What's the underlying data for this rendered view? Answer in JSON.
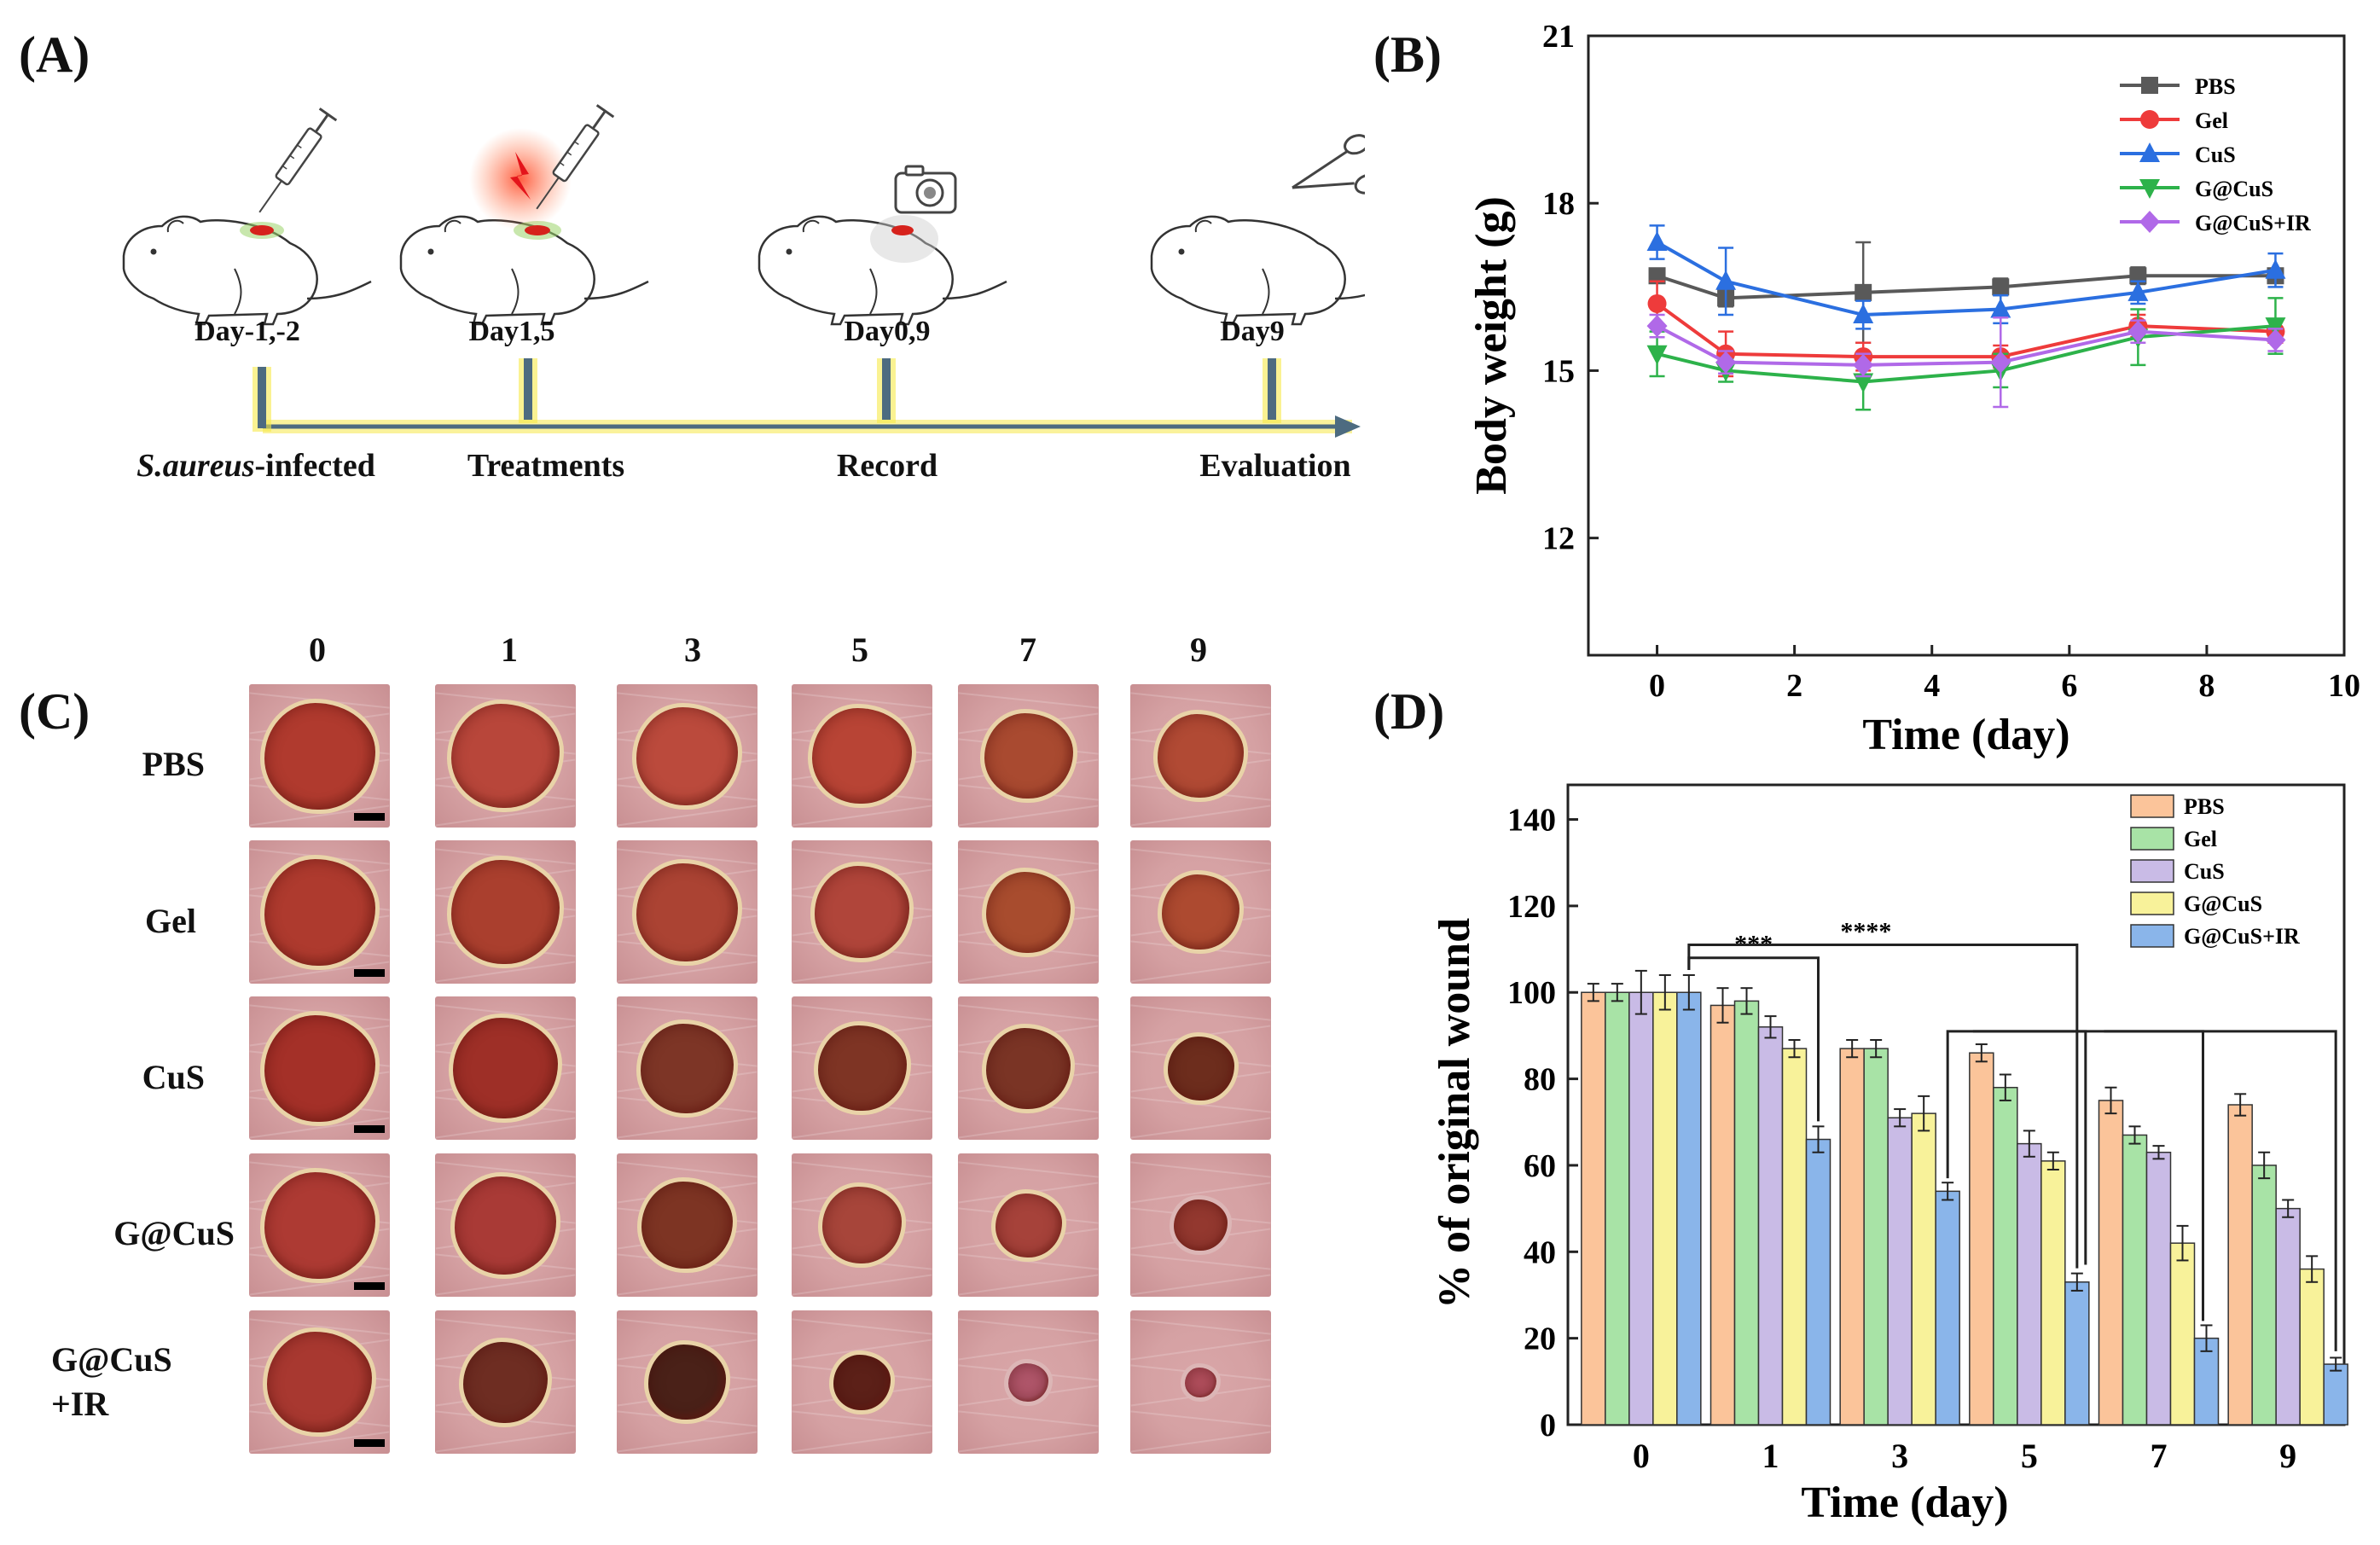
{
  "panels": {
    "a": "(A)",
    "b": "(B)",
    "c": "(C)",
    "d": "(D)"
  },
  "timeline": {
    "days": [
      "Day-1,-2",
      "Day1,5",
      "Day0,9",
      "Day9"
    ],
    "stages": [
      {
        "italic": "S.aureus",
        "rest": "-infected"
      },
      {
        "italic": "",
        "rest": "Treatments"
      },
      {
        "italic": "",
        "rest": "Record"
      },
      {
        "italic": "",
        "rest": "Evaluation"
      }
    ],
    "icons": [
      "syringe-icon",
      "laser-syringe-icon",
      "camera-icon",
      "scissors-icon"
    ],
    "accent": "#f6e94a"
  },
  "photo_grid": {
    "columns": [
      "0",
      "1",
      "3",
      "5",
      "7",
      "9"
    ],
    "rows": [
      "PBS",
      "Gel",
      "CuS",
      "G@CuS",
      "G@CuS\n+IR"
    ],
    "wound_size": [
      [
        1.0,
        0.98,
        0.92,
        0.9,
        0.8,
        0.78
      ],
      [
        1.0,
        0.97,
        0.92,
        0.86,
        0.76,
        0.7
      ],
      [
        1.0,
        0.95,
        0.84,
        0.8,
        0.76,
        0.6
      ],
      [
        1.0,
        0.92,
        0.82,
        0.72,
        0.6,
        0.48
      ],
      [
        0.95,
        0.76,
        0.7,
        0.52,
        0.36,
        0.28
      ]
    ],
    "wound_colors": [
      [
        "#b03a2e",
        "#b8463a",
        "#bb4a3c",
        "#b84435",
        "#a94a30",
        "#b14a34"
      ],
      [
        "#ae3a2e",
        "#aa3f2e",
        "#ab4333",
        "#b0453a",
        "#a84c2e",
        "#ad4a30"
      ],
      [
        "#a43028",
        "#9e2f27",
        "#7d3526",
        "#7e3424",
        "#7a3425",
        "#6d2d1d"
      ],
      [
        "#ad3a33",
        "#a93a36",
        "#7d3423",
        "#a7453a",
        "#a6423a",
        "#93382f"
      ],
      [
        "#a83830",
        "#6e2d22",
        "#4a2118",
        "#5c2018",
        "#b0566a",
        "#b3505e"
      ]
    ]
  },
  "chart_data": [
    {
      "panel": "B",
      "type": "line",
      "xlabel": "Time (day)",
      "ylabel": "Body weight (g)",
      "xlim": [
        -1,
        10
      ],
      "ylim": [
        9.9,
        21
      ],
      "xticks": [
        0,
        2,
        4,
        6,
        8,
        10
      ],
      "yticks": [
        12,
        15,
        18,
        21
      ],
      "x": [
        0,
        1,
        3,
        5,
        7,
        9
      ],
      "legend_position": "top-right",
      "series": [
        {
          "name": "PBS",
          "color": "#595959",
          "marker": "square",
          "values": [
            16.7,
            16.3,
            16.4,
            16.5,
            16.7,
            16.7
          ],
          "errors": [
            0.1,
            0.15,
            0.9,
            0.15,
            0.15,
            0.1
          ]
        },
        {
          "name": "Gel",
          "color": "#ee3b3b",
          "marker": "circle",
          "values": [
            16.2,
            15.3,
            15.25,
            15.25,
            15.8,
            15.7
          ],
          "errors": [
            0.4,
            0.4,
            0.25,
            0.2,
            0.2,
            0.2
          ]
        },
        {
          "name": "CuS",
          "color": "#2b6fe0",
          "marker": "triangle-up",
          "values": [
            17.3,
            16.6,
            16.0,
            16.1,
            16.4,
            16.8
          ],
          "errors": [
            0.3,
            0.6,
            0.25,
            0.25,
            0.2,
            0.3
          ]
        },
        {
          "name": "G@CuS",
          "color": "#2db24a",
          "marker": "triangle-down",
          "values": [
            15.3,
            15.0,
            14.8,
            15.0,
            15.6,
            15.8
          ],
          "errors": [
            0.4,
            0.2,
            0.5,
            0.3,
            0.5,
            0.5
          ]
        },
        {
          "name": "G@CuS+IR",
          "color": "#b069e8",
          "marker": "diamond",
          "values": [
            15.8,
            15.15,
            15.1,
            15.15,
            15.7,
            15.55
          ],
          "errors": [
            0.2,
            0.2,
            0.2,
            0.8,
            0.2,
            0.2
          ]
        }
      ]
    },
    {
      "panel": "D",
      "type": "bar",
      "xlabel": "Time (day)",
      "ylabel": "% of original wound",
      "ylim": [
        0,
        148
      ],
      "yticks": [
        0,
        20,
        40,
        60,
        80,
        100,
        120,
        140
      ],
      "categories": [
        "0",
        "1",
        "3",
        "5",
        "7",
        "9"
      ],
      "legend_position": "top-right",
      "series": [
        {
          "name": "PBS",
          "color": "#fbc49a",
          "values": [
            100,
            97,
            87,
            86,
            75,
            74
          ],
          "errors": [
            2,
            4,
            2,
            2,
            3,
            2.5
          ]
        },
        {
          "name": "Gel",
          "color": "#a8e3a6",
          "values": [
            100,
            98,
            87,
            78,
            67,
            60
          ],
          "errors": [
            2,
            3,
            2,
            3,
            2,
            3
          ]
        },
        {
          "name": "CuS",
          "color": "#c9bbe6",
          "values": [
            100,
            92,
            71,
            65,
            63,
            50
          ],
          "errors": [
            5,
            2.5,
            2,
            3,
            1.5,
            2
          ]
        },
        {
          "name": "G@CuS",
          "color": "#f8f29a",
          "values": [
            100,
            87,
            72,
            61,
            42,
            36
          ],
          "errors": [
            4,
            2,
            4,
            2,
            4,
            3
          ]
        },
        {
          "name": "G@CuS+IR",
          "color": "#8ab5ea",
          "values": [
            100,
            66,
            54,
            33,
            20,
            14
          ],
          "errors": [
            4,
            3,
            2,
            2,
            3,
            1.5
          ]
        }
      ],
      "annotations": [
        {
          "label": "***",
          "from": "0",
          "to": "1"
        },
        {
          "label": "****",
          "from": "0",
          "to": "5"
        }
      ]
    }
  ]
}
